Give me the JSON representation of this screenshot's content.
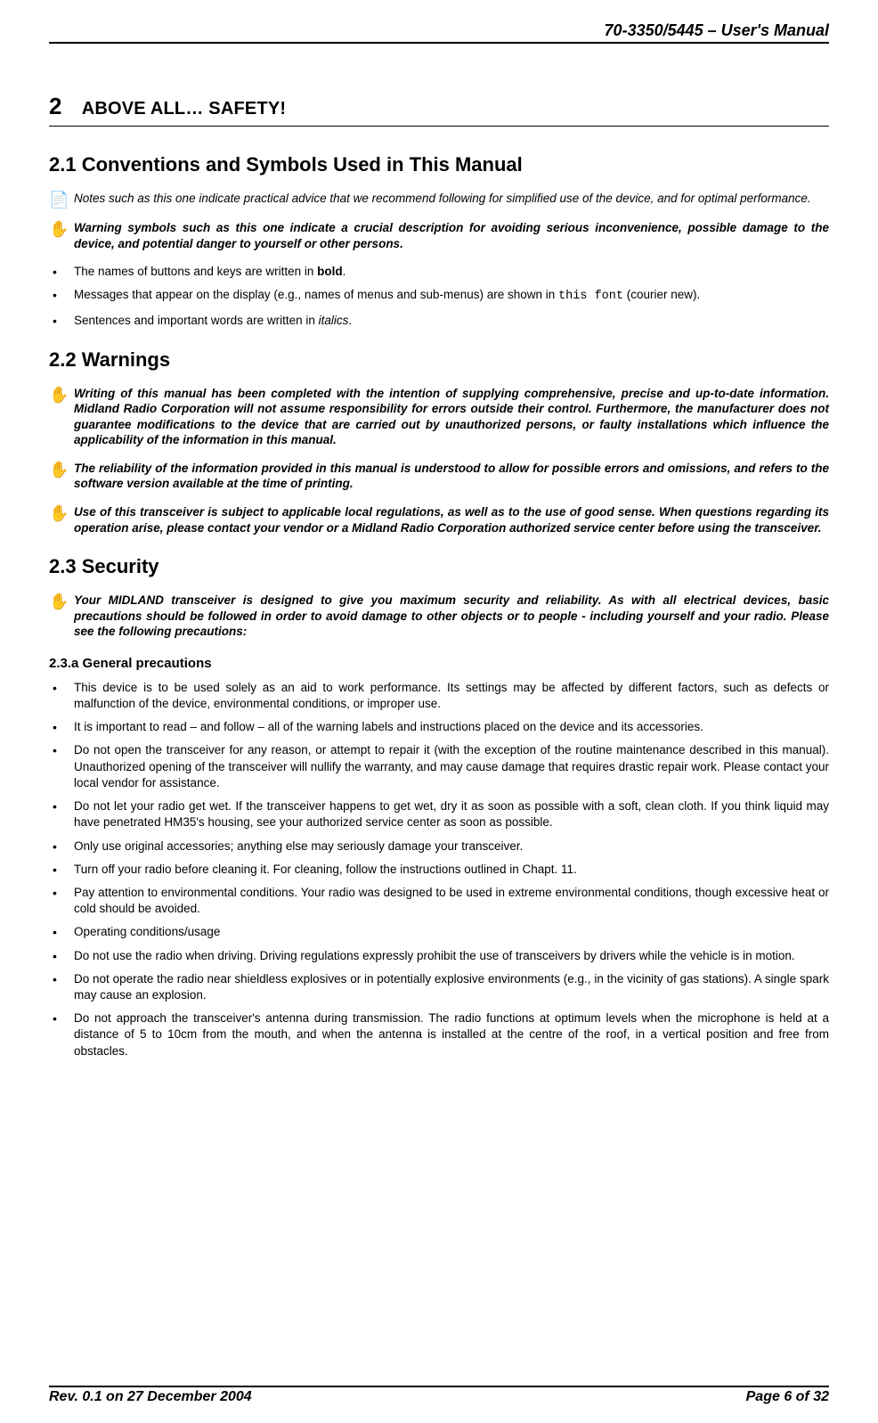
{
  "header": {
    "title": "70-3350/5445 – User's Manual"
  },
  "chapter": {
    "number": "2",
    "title_prefix": "ABOVE ALL",
    "title_dots": "…",
    "title_suffix": " SAFETY",
    "title_bang": "!"
  },
  "section_2_1": {
    "heading": "2.1   Conventions and Symbols Used in This Manual",
    "note1_icon": "📄",
    "note1": " Notes such as this one indicate practical advice that we recommend following for simplified use of the device, and for optimal performance.",
    "warn1_icon": "✋",
    "warn1": "Warning symbols such as this one indicate a crucial description for avoiding serious inconvenience, possible damage to the device, and potential danger to yourself or other persons.",
    "b1_pre": "The names of buttons and keys are written in ",
    "b1_bold": "bold",
    "b1_post": ".",
    "b2_pre": "Messages that appear on the display (e.g., names of menus and sub-menus) are shown in ",
    "b2_code": "this font",
    "b2_post": " (courier new).",
    "b3_pre": "Sentences and important words are written in ",
    "b3_ital": "italics",
    "b3_post": "."
  },
  "section_2_2": {
    "heading": "2.2   Warnings",
    "icon": "✋",
    "w1": "Writing of this manual has been completed with the intention of supplying comprehensive, precise and up-to-date information.  Midland Radio Corporation will not assume responsibility for errors outside their control.  Furthermore, the manufacturer does not guarantee modifications to the device that are carried out by unauthorized persons, or faulty installations which influence the applicability of the information in this manual.",
    "w2": "The reliability of the information provided in this manual is understood to allow for possible errors and omissions, and refers to the software version available at the time of printing.",
    "w3": "Use of this transceiver is subject to applicable local regulations, as well as to the use of good sense.  When questions regarding its operation arise, please contact your vendor or a Midland Radio Corporation authorized service center before using the transceiver."
  },
  "section_2_3": {
    "heading": "2.3   Security",
    "icon": "✋",
    "w1": "Your MIDLAND  transceiver is designed to give you maximum security and reliability.  As with all electrical devices, basic precautions should be followed in order to avoid damage to other objects or to people - including yourself and your radio.  Please see the following precautions:",
    "sub_a": "2.3.a      General precautions",
    "bullets": [
      "This device is to be used solely as an aid to work performance.  Its settings may be affected by different factors, such as defects or malfunction of the device, environmental conditions, or improper use.",
      "It is important to read – and follow – all of the warning labels and instructions placed on the device and its accessories.",
      "Do not open the transceiver for any reason, or attempt to repair it (with the exception of the routine maintenance described in this manual).  Unauthorized opening of the transceiver will nullify the warranty, and may cause damage that requires drastic repair work.  Please contact your local vendor for assistance.",
      "Do not let your radio get wet.  If the transceiver happens to get wet, dry it as soon as possible with a soft, clean cloth.  If you think liquid may have penetrated HM35's housing, see your authorized service center as soon as possible.",
      "Only use original accessories; anything else may seriously damage your transceiver.",
      "Turn off your radio before cleaning it.  For cleaning, follow the instructions outlined in Chapt. 11.",
      "Pay attention to environmental conditions.  Your radio was designed to be used in extreme environmental conditions, though excessive heat or cold should be avoided.",
      "Operating conditions/usage",
      "Do not use the radio when driving.  Driving regulations expressly prohibit the use of transceivers by drivers while the vehicle is in motion.",
      "Do not operate the radio near shieldless explosives or in potentially explosive environments (e.g., in the vicinity of gas stations).  A single spark may cause an explosion.",
      "Do not approach the transceiver's antenna during transmission.  The radio functions at optimum levels when the microphone is held at a distance of 5 to 10cm from the mouth, and when the antenna is installed at the centre of the roof, in a vertical position and free from obstacles."
    ]
  },
  "footer": {
    "left": "Rev. 0.1 on 27 December 2004",
    "right": "Page 6 of 32"
  }
}
